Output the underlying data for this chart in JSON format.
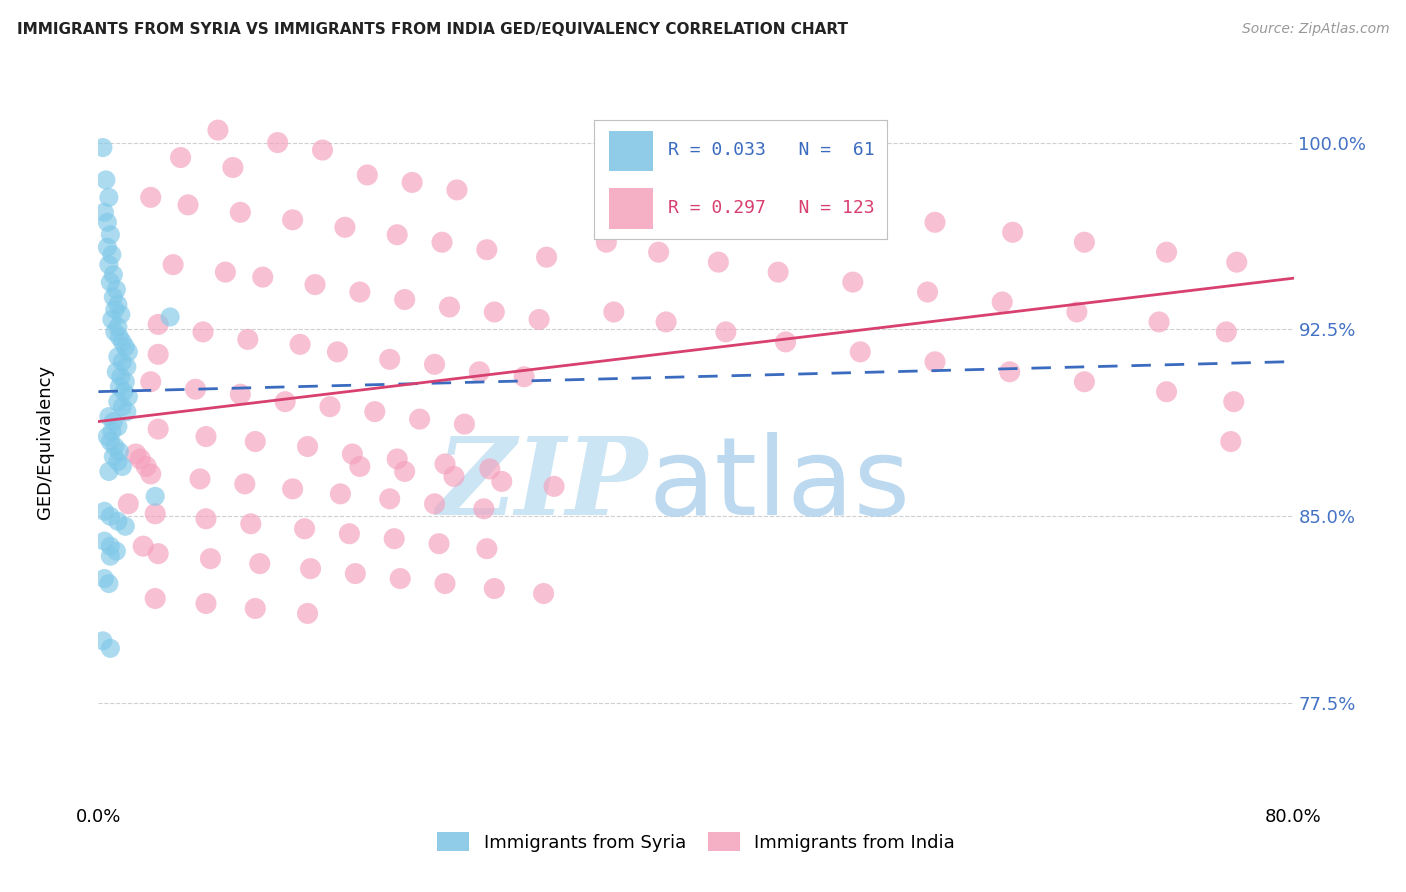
{
  "title": "IMMIGRANTS FROM SYRIA VS IMMIGRANTS FROM INDIA GED/EQUIVALENCY CORRELATION CHART",
  "source": "Source: ZipAtlas.com",
  "ylabel": "GED/Equivalency",
  "xlim": [
    0.0,
    0.8
  ],
  "ylim": [
    0.735,
    1.025
  ],
  "xtick_labels": [
    "0.0%",
    "80.0%"
  ],
  "xtick_values": [
    0.0,
    0.8
  ],
  "ytick_labels": [
    "100.0%",
    "92.5%",
    "85.0%",
    "77.5%"
  ],
  "ytick_values": [
    1.0,
    0.925,
    0.85,
    0.775
  ],
  "syria_color": "#80c8e8",
  "india_color": "#f5a0bc",
  "syria_line_color": "#3a6bbf",
  "india_line_color": "#d84070",
  "watermark_zip_color": "#cce4f5",
  "watermark_atlas_color": "#b8d8f0",
  "r_syria": 0.033,
  "n_syria": 61,
  "r_india": 0.297,
  "n_india": 123,
  "legend_syria_color": "#90cce8",
  "legend_india_color": "#f5b0c5",
  "legend_text_syria_color": "#3a6bbf",
  "legend_text_india_color": "#d84070",
  "syria_scatter_x": [
    0.003,
    0.005,
    0.007,
    0.004,
    0.006,
    0.008,
    0.006,
    0.009,
    0.007,
    0.01,
    0.008,
    0.012,
    0.01,
    0.013,
    0.011,
    0.015,
    0.009,
    0.013,
    0.011,
    0.014,
    0.016,
    0.018,
    0.02,
    0.013,
    0.016,
    0.019,
    0.012,
    0.015,
    0.018,
    0.014,
    0.017,
    0.02,
    0.013,
    0.016,
    0.019,
    0.007,
    0.01,
    0.013,
    0.009,
    0.006,
    0.008,
    0.011,
    0.014,
    0.01,
    0.013,
    0.016,
    0.007,
    0.038,
    0.004,
    0.008,
    0.013,
    0.018,
    0.004,
    0.008,
    0.012,
    0.008,
    0.004,
    0.007,
    0.003,
    0.008,
    0.048
  ],
  "syria_scatter_y": [
    0.998,
    0.985,
    0.978,
    0.972,
    0.968,
    0.963,
    0.958,
    0.955,
    0.951,
    0.947,
    0.944,
    0.941,
    0.938,
    0.935,
    0.933,
    0.931,
    0.929,
    0.926,
    0.924,
    0.922,
    0.92,
    0.918,
    0.916,
    0.914,
    0.912,
    0.91,
    0.908,
    0.906,
    0.904,
    0.902,
    0.9,
    0.898,
    0.896,
    0.894,
    0.892,
    0.89,
    0.888,
    0.886,
    0.884,
    0.882,
    0.88,
    0.878,
    0.876,
    0.874,
    0.872,
    0.87,
    0.868,
    0.858,
    0.852,
    0.85,
    0.848,
    0.846,
    0.84,
    0.838,
    0.836,
    0.834,
    0.825,
    0.823,
    0.8,
    0.797,
    0.93
  ],
  "india_scatter_x": [
    0.08,
    0.12,
    0.15,
    0.055,
    0.09,
    0.18,
    0.21,
    0.24,
    0.035,
    0.06,
    0.095,
    0.13,
    0.165,
    0.2,
    0.23,
    0.26,
    0.3,
    0.05,
    0.085,
    0.11,
    0.145,
    0.175,
    0.205,
    0.235,
    0.265,
    0.295,
    0.04,
    0.07,
    0.1,
    0.135,
    0.16,
    0.195,
    0.225,
    0.255,
    0.285,
    0.035,
    0.065,
    0.095,
    0.125,
    0.155,
    0.185,
    0.215,
    0.245,
    0.04,
    0.072,
    0.105,
    0.14,
    0.17,
    0.2,
    0.232,
    0.262,
    0.035,
    0.068,
    0.098,
    0.13,
    0.162,
    0.195,
    0.225,
    0.258,
    0.038,
    0.072,
    0.102,
    0.138,
    0.168,
    0.198,
    0.228,
    0.26,
    0.04,
    0.075,
    0.108,
    0.142,
    0.172,
    0.202,
    0.232,
    0.265,
    0.298,
    0.038,
    0.072,
    0.105,
    0.14,
    0.175,
    0.205,
    0.238,
    0.27,
    0.305,
    0.345,
    0.38,
    0.42,
    0.46,
    0.51,
    0.56,
    0.61,
    0.66,
    0.715,
    0.76,
    0.34,
    0.375,
    0.415,
    0.455,
    0.505,
    0.555,
    0.605,
    0.655,
    0.71,
    0.755,
    0.34,
    0.378,
    0.418,
    0.46,
    0.51,
    0.56,
    0.612,
    0.66,
    0.715,
    0.762,
    0.04,
    0.02,
    0.025,
    0.03,
    0.758,
    0.028,
    0.032
  ],
  "india_scatter_y": [
    1.005,
    1.0,
    0.997,
    0.994,
    0.99,
    0.987,
    0.984,
    0.981,
    0.978,
    0.975,
    0.972,
    0.969,
    0.966,
    0.963,
    0.96,
    0.957,
    0.954,
    0.951,
    0.948,
    0.946,
    0.943,
    0.94,
    0.937,
    0.934,
    0.932,
    0.929,
    0.927,
    0.924,
    0.921,
    0.919,
    0.916,
    0.913,
    0.911,
    0.908,
    0.906,
    0.904,
    0.901,
    0.899,
    0.896,
    0.894,
    0.892,
    0.889,
    0.887,
    0.885,
    0.882,
    0.88,
    0.878,
    0.875,
    0.873,
    0.871,
    0.869,
    0.867,
    0.865,
    0.863,
    0.861,
    0.859,
    0.857,
    0.855,
    0.853,
    0.851,
    0.849,
    0.847,
    0.845,
    0.843,
    0.841,
    0.839,
    0.837,
    0.835,
    0.833,
    0.831,
    0.829,
    0.827,
    0.825,
    0.823,
    0.821,
    0.819,
    0.817,
    0.815,
    0.813,
    0.811,
    0.87,
    0.868,
    0.866,
    0.864,
    0.862,
    0.932,
    0.928,
    0.924,
    0.92,
    0.916,
    0.912,
    0.908,
    0.904,
    0.9,
    0.896,
    0.96,
    0.956,
    0.952,
    0.948,
    0.944,
    0.94,
    0.936,
    0.932,
    0.928,
    0.924,
    0.988,
    0.984,
    0.98,
    0.976,
    0.972,
    0.968,
    0.964,
    0.96,
    0.956,
    0.952,
    0.915,
    0.855,
    0.875,
    0.838,
    0.88,
    0.873,
    0.87
  ]
}
